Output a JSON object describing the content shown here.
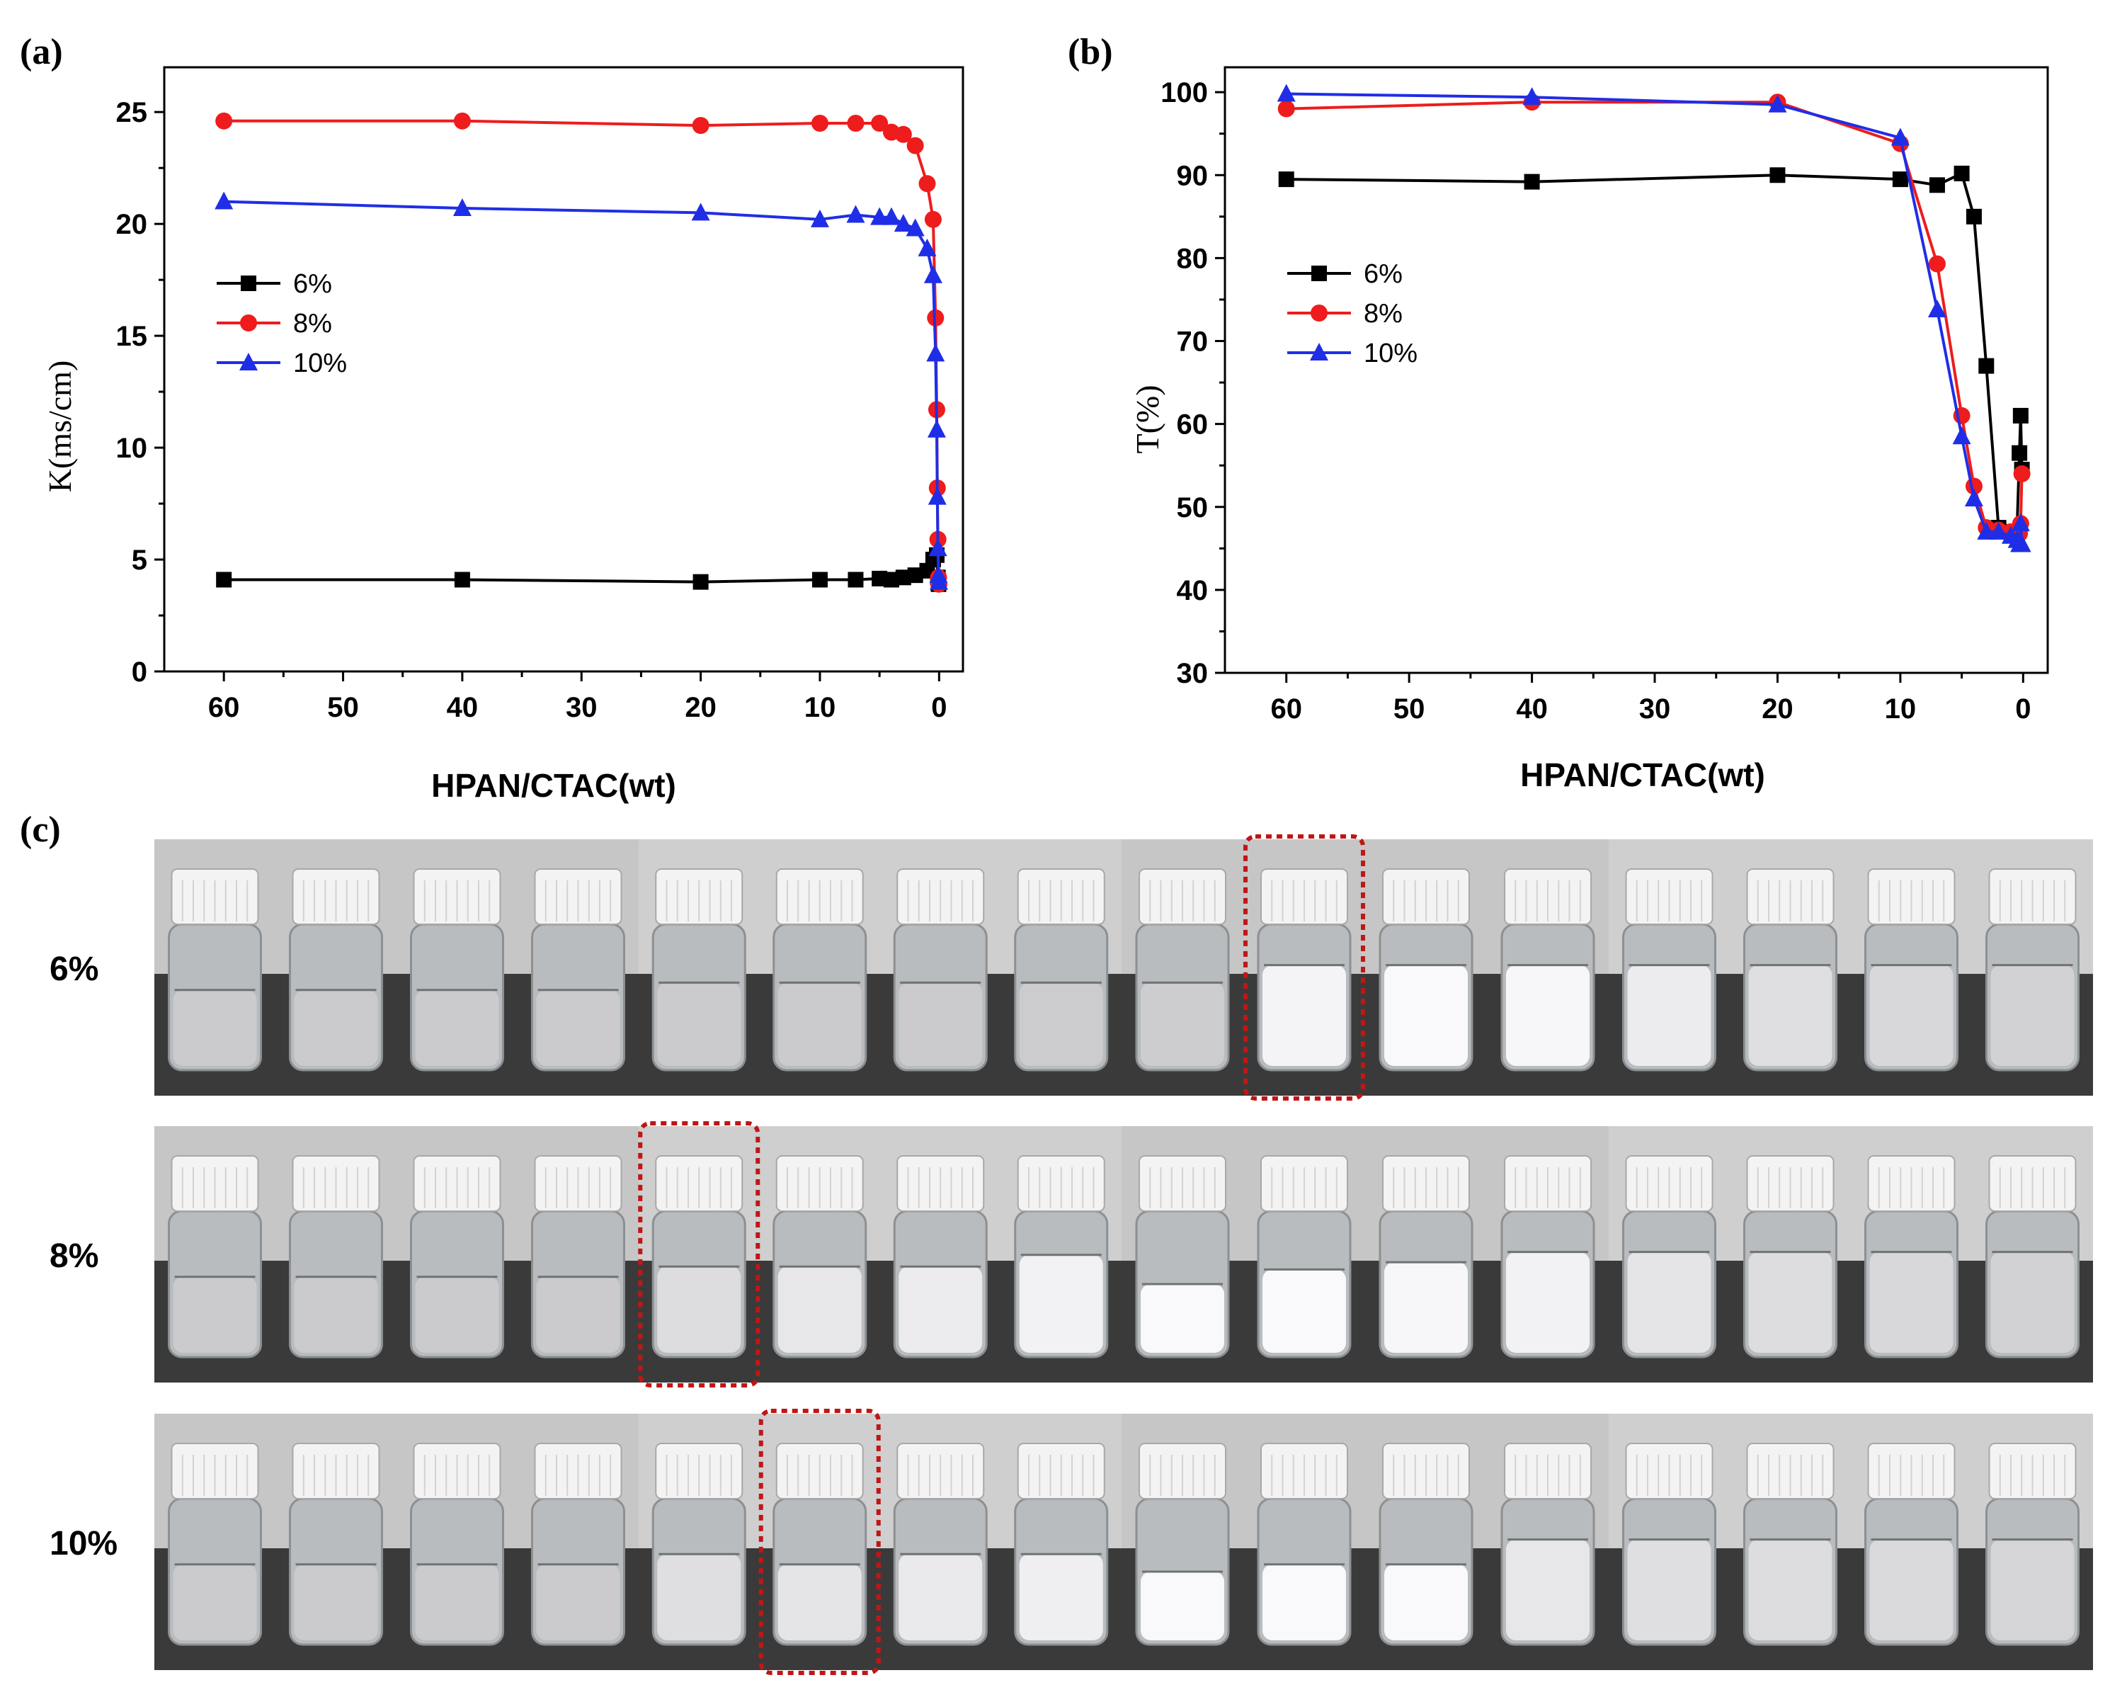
{
  "colors": {
    "6%": "#000000",
    "8%": "#ee1c1c",
    "10%": "#1f2ee6",
    "highlight": "#c01616"
  },
  "chart_data": [
    {
      "panel": "(a)",
      "type": "line",
      "xlabel": "HPAN/CTAC(wt)",
      "ylabel": "K(ms/cm)",
      "xlim": [
        65,
        -2
      ],
      "ylim": [
        0,
        27
      ],
      "xticks": [
        60,
        50,
        40,
        30,
        20,
        10,
        0
      ],
      "yticks": [
        0,
        5,
        10,
        15,
        20,
        25
      ],
      "legend": [
        "6%",
        "8%",
        "10%"
      ],
      "series": [
        {
          "name": "6%",
          "marker": "square",
          "x": [
            60,
            40,
            20,
            10,
            7,
            5,
            4,
            3,
            2,
            1,
            0.5,
            0.2,
            0.1,
            0.05
          ],
          "y": [
            4.1,
            4.1,
            4.0,
            4.1,
            4.1,
            4.15,
            4.1,
            4.2,
            4.3,
            4.5,
            5.0,
            5.2,
            4.2,
            3.9
          ]
        },
        {
          "name": "8%",
          "marker": "circle",
          "x": [
            60,
            40,
            20,
            10,
            7,
            5,
            4,
            3,
            2,
            1,
            0.5,
            0.3,
            0.2,
            0.15,
            0.1,
            0.05,
            0.02
          ],
          "y": [
            24.6,
            24.6,
            24.4,
            24.5,
            24.5,
            24.5,
            24.1,
            24.0,
            23.5,
            21.8,
            20.2,
            15.8,
            11.7,
            8.2,
            5.9,
            4.2,
            3.9
          ]
        },
        {
          "name": "10%",
          "marker": "triangle",
          "x": [
            60,
            40,
            20,
            10,
            7,
            5,
            4,
            3,
            2,
            1,
            0.5,
            0.3,
            0.2,
            0.15,
            0.1,
            0.05,
            0.02
          ],
          "y": [
            21.0,
            20.7,
            20.5,
            20.2,
            20.4,
            20.3,
            20.3,
            20.0,
            19.8,
            18.9,
            17.7,
            14.2,
            10.8,
            7.8,
            5.5,
            4.3,
            4.0
          ]
        }
      ]
    },
    {
      "panel": "(b)",
      "type": "line",
      "xlabel": "HPAN/CTAC(wt)",
      "ylabel": "T(%)",
      "xlim": [
        65,
        -2
      ],
      "ylim": [
        30,
        103
      ],
      "xticks": [
        60,
        50,
        40,
        30,
        20,
        10,
        0
      ],
      "yticks": [
        30,
        40,
        50,
        60,
        70,
        80,
        90,
        100
      ],
      "legend": [
        "6%",
        "8%",
        "10%"
      ],
      "series": [
        {
          "name": "6%",
          "marker": "square",
          "x": [
            60,
            40,
            20,
            10,
            7,
            5,
            4,
            3,
            2,
            1,
            0.5,
            0.3,
            0.2,
            0.1
          ],
          "y": [
            89.5,
            89.2,
            90.0,
            89.5,
            88.8,
            90.2,
            85.0,
            67.0,
            47.5,
            47.0,
            47.0,
            56.5,
            61.0,
            54.5
          ]
        },
        {
          "name": "8%",
          "marker": "circle",
          "x": [
            60,
            40,
            20,
            10,
            7,
            5,
            4,
            3,
            2,
            1,
            0.5,
            0.3,
            0.2,
            0.1
          ],
          "y": [
            98.0,
            98.8,
            98.8,
            93.8,
            79.3,
            61.0,
            52.5,
            47.5,
            47.2,
            47.0,
            46.5,
            46.8,
            48.0,
            54.0
          ]
        },
        {
          "name": "10%",
          "marker": "triangle",
          "x": [
            60,
            40,
            20,
            10,
            7,
            5,
            4,
            3,
            2,
            1,
            0.5,
            0.3,
            0.2,
            0.1
          ],
          "y": [
            99.8,
            99.4,
            98.5,
            94.5,
            73.8,
            58.5,
            51.0,
            47.0,
            47.0,
            46.5,
            46.0,
            45.5,
            48.0,
            45.5
          ]
        }
      ]
    }
  ],
  "panel_c": {
    "label": "(c)",
    "rows": [
      {
        "label": "6%",
        "highlight_vial": 9,
        "vials": [
          {
            "fill": 0.55,
            "turbidity": 0.05
          },
          {
            "fill": 0.55,
            "turbidity": 0.05
          },
          {
            "fill": 0.55,
            "turbidity": 0.05
          },
          {
            "fill": 0.55,
            "turbidity": 0.05
          },
          {
            "fill": 0.6,
            "turbidity": 0.05
          },
          {
            "fill": 0.6,
            "turbidity": 0.05
          },
          {
            "fill": 0.6,
            "turbidity": 0.05
          },
          {
            "fill": 0.6,
            "turbidity": 0.08
          },
          {
            "fill": 0.6,
            "turbidity": 0.1
          },
          {
            "fill": 0.72,
            "turbidity": 0.85
          },
          {
            "fill": 0.72,
            "turbidity": 0.95
          },
          {
            "fill": 0.72,
            "turbidity": 0.9
          },
          {
            "fill": 0.72,
            "turbidity": 0.7
          },
          {
            "fill": 0.72,
            "turbidity": 0.45
          },
          {
            "fill": 0.72,
            "turbidity": 0.3
          },
          {
            "fill": 0.72,
            "turbidity": 0.2
          }
        ]
      },
      {
        "label": "8%",
        "highlight_vial": 4,
        "vials": [
          {
            "fill": 0.55,
            "turbidity": 0.05
          },
          {
            "fill": 0.55,
            "turbidity": 0.05
          },
          {
            "fill": 0.55,
            "turbidity": 0.05
          },
          {
            "fill": 0.55,
            "turbidity": 0.05
          },
          {
            "fill": 0.62,
            "turbidity": 0.4
          },
          {
            "fill": 0.62,
            "turbidity": 0.6
          },
          {
            "fill": 0.62,
            "turbidity": 0.7
          },
          {
            "fill": 0.7,
            "turbidity": 0.8
          },
          {
            "fill": 0.5,
            "turbidity": 0.95
          },
          {
            "fill": 0.6,
            "turbidity": 0.95
          },
          {
            "fill": 0.65,
            "turbidity": 0.9
          },
          {
            "fill": 0.72,
            "turbidity": 0.8
          },
          {
            "fill": 0.72,
            "turbidity": 0.55
          },
          {
            "fill": 0.72,
            "turbidity": 0.4
          },
          {
            "fill": 0.72,
            "turbidity": 0.3
          },
          {
            "fill": 0.72,
            "turbidity": 0.2
          }
        ]
      },
      {
        "label": "10%",
        "highlight_vial": 5,
        "vials": [
          {
            "fill": 0.55,
            "turbidity": 0.05
          },
          {
            "fill": 0.55,
            "turbidity": 0.05
          },
          {
            "fill": 0.55,
            "turbidity": 0.05
          },
          {
            "fill": 0.55,
            "turbidity": 0.05
          },
          {
            "fill": 0.62,
            "turbidity": 0.45
          },
          {
            "fill": 0.55,
            "turbidity": 0.55
          },
          {
            "fill": 0.62,
            "turbidity": 0.65
          },
          {
            "fill": 0.62,
            "turbidity": 0.75
          },
          {
            "fill": 0.5,
            "turbidity": 0.95
          },
          {
            "fill": 0.55,
            "turbidity": 0.95
          },
          {
            "fill": 0.55,
            "turbidity": 0.95
          },
          {
            "fill": 0.72,
            "turbidity": 0.6
          },
          {
            "fill": 0.72,
            "turbidity": 0.45
          },
          {
            "fill": 0.72,
            "turbidity": 0.4
          },
          {
            "fill": 0.72,
            "turbidity": 0.35
          },
          {
            "fill": 0.72,
            "turbidity": 0.25
          }
        ]
      }
    ]
  }
}
